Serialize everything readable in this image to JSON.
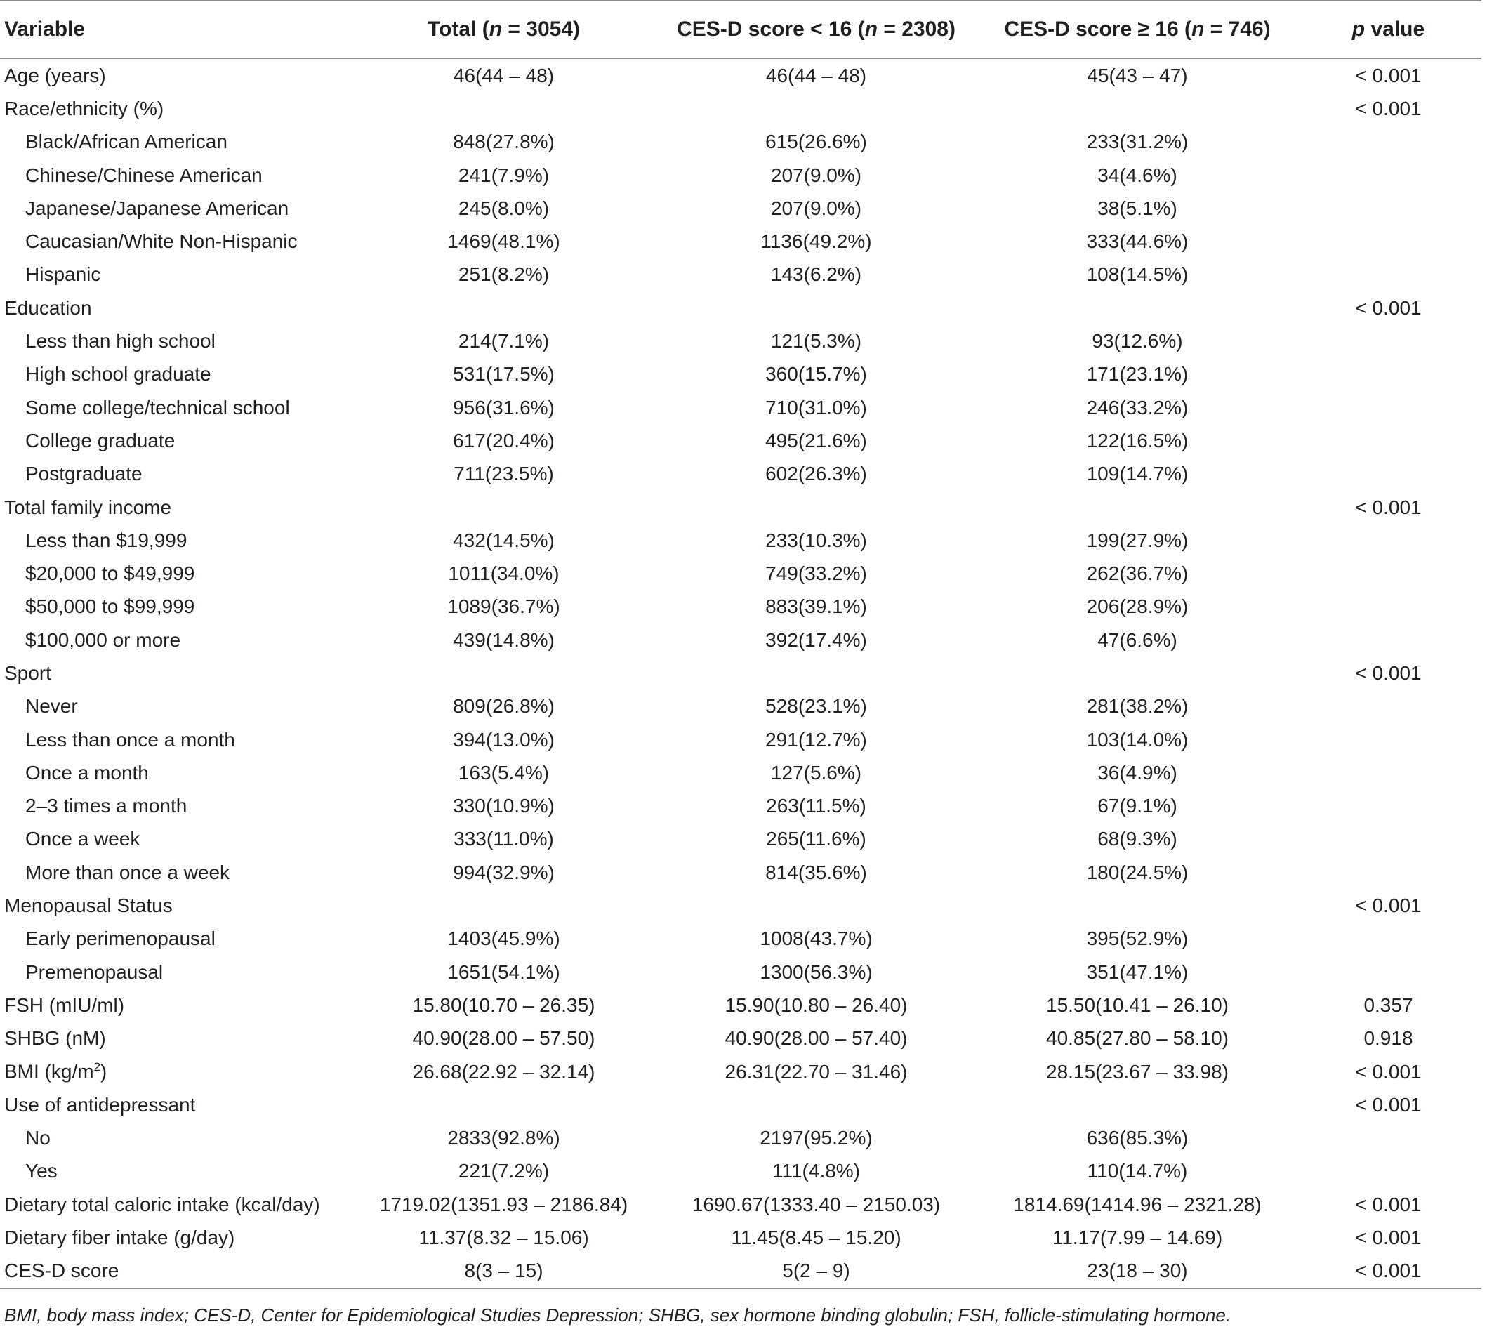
{
  "header": {
    "variable": "Variable",
    "total_prefix": "Total (",
    "total_n": "n",
    "total_suffix": " = 3054)",
    "low_prefix": "CES-D score < 16 (",
    "low_n": "n",
    "low_suffix": " = 2308)",
    "high_prefix": "CES-D score ≥ 16 (",
    "high_n": "n",
    "high_suffix": " = 746)",
    "p_italic": "p",
    "p_suffix": " value"
  },
  "rows": [
    {
      "label": "Age (years)",
      "sub": false,
      "total": "46(44 – 48)",
      "low": "46(44 – 48)",
      "high": "45(43 – 47)",
      "p": "< 0.001"
    },
    {
      "label": "Race/ethnicity (%)",
      "sub": false,
      "total": "",
      "low": "",
      "high": "",
      "p": "< 0.001"
    },
    {
      "label": "Black/African American",
      "sub": true,
      "total": "848(27.8%)",
      "low": "615(26.6%)",
      "high": "233(31.2%)",
      "p": ""
    },
    {
      "label": "Chinese/Chinese American",
      "sub": true,
      "total": "241(7.9%)",
      "low": "207(9.0%)",
      "high": "34(4.6%)",
      "p": ""
    },
    {
      "label": "Japanese/Japanese American",
      "sub": true,
      "total": "245(8.0%)",
      "low": "207(9.0%)",
      "high": "38(5.1%)",
      "p": ""
    },
    {
      "label": "Caucasian/White Non-Hispanic",
      "sub": true,
      "total": "1469(48.1%)",
      "low": "1136(49.2%)",
      "high": "333(44.6%)",
      "p": ""
    },
    {
      "label": "Hispanic",
      "sub": true,
      "total": "251(8.2%)",
      "low": "143(6.2%)",
      "high": "108(14.5%)",
      "p": ""
    },
    {
      "label": "Education",
      "sub": false,
      "total": "",
      "low": "",
      "high": "",
      "p": "< 0.001"
    },
    {
      "label": "Less than high school",
      "sub": true,
      "total": "214(7.1%)",
      "low": "121(5.3%)",
      "high": "93(12.6%)",
      "p": ""
    },
    {
      "label": "High school graduate",
      "sub": true,
      "total": "531(17.5%)",
      "low": "360(15.7%)",
      "high": "171(23.1%)",
      "p": ""
    },
    {
      "label": "Some college/technical school",
      "sub": true,
      "total": "956(31.6%)",
      "low": "710(31.0%)",
      "high": "246(33.2%)",
      "p": ""
    },
    {
      "label": "College graduate",
      "sub": true,
      "total": "617(20.4%)",
      "low": "495(21.6%)",
      "high": "122(16.5%)",
      "p": ""
    },
    {
      "label": "Postgraduate",
      "sub": true,
      "total": "711(23.5%)",
      "low": "602(26.3%)",
      "high": "109(14.7%)",
      "p": ""
    },
    {
      "label": "Total family income",
      "sub": false,
      "total": "",
      "low": "",
      "high": "",
      "p": "< 0.001"
    },
    {
      "label": "Less than $19,999",
      "sub": true,
      "total": "432(14.5%)",
      "low": "233(10.3%)",
      "high": "199(27.9%)",
      "p": ""
    },
    {
      "label": "$20,000 to $49,999",
      "sub": true,
      "total": "1011(34.0%)",
      "low": "749(33.2%)",
      "high": "262(36.7%)",
      "p": ""
    },
    {
      "label": "$50,000 to $99,999",
      "sub": true,
      "total": "1089(36.7%)",
      "low": "883(39.1%)",
      "high": "206(28.9%)",
      "p": ""
    },
    {
      "label": "$100,000 or more",
      "sub": true,
      "total": "439(14.8%)",
      "low": "392(17.4%)",
      "high": "47(6.6%)",
      "p": ""
    },
    {
      "label": "Sport",
      "sub": false,
      "total": "",
      "low": "",
      "high": "",
      "p": "< 0.001"
    },
    {
      "label": "Never",
      "sub": true,
      "total": "809(26.8%)",
      "low": "528(23.1%)",
      "high": "281(38.2%)",
      "p": ""
    },
    {
      "label": "Less than once a month",
      "sub": true,
      "total": "394(13.0%)",
      "low": "291(12.7%)",
      "high": "103(14.0%)",
      "p": ""
    },
    {
      "label": "Once a month",
      "sub": true,
      "total": "163(5.4%)",
      "low": "127(5.6%)",
      "high": "36(4.9%)",
      "p": ""
    },
    {
      "label": "2–3 times a month",
      "sub": true,
      "total": "330(10.9%)",
      "low": "263(11.5%)",
      "high": "67(9.1%)",
      "p": ""
    },
    {
      "label": "Once a week",
      "sub": true,
      "total": "333(11.0%)",
      "low": "265(11.6%)",
      "high": "68(9.3%)",
      "p": ""
    },
    {
      "label": "More than once a week",
      "sub": true,
      "total": "994(32.9%)",
      "low": "814(35.6%)",
      "high": "180(24.5%)",
      "p": ""
    },
    {
      "label": "Menopausal Status",
      "sub": false,
      "total": "",
      "low": "",
      "high": "",
      "p": "< 0.001"
    },
    {
      "label": "Early perimenopausal",
      "sub": true,
      "total": "1403(45.9%)",
      "low": "1008(43.7%)",
      "high": "395(52.9%)",
      "p": ""
    },
    {
      "label": "Premenopausal",
      "sub": true,
      "total": "1651(54.1%)",
      "low": "1300(56.3%)",
      "high": "351(47.1%)",
      "p": ""
    },
    {
      "label": "FSH (mIU/ml)",
      "sub": false,
      "total": "15.80(10.70 – 26.35)",
      "low": "15.90(10.80 – 26.40)",
      "high": "15.50(10.41 – 26.10)",
      "p": "0.357"
    },
    {
      "label": "SHBG (nM)",
      "sub": false,
      "total": "40.90(28.00 – 57.50)",
      "low": "40.90(28.00 – 57.40)",
      "high": "40.85(27.80 – 58.10)",
      "p": "0.918"
    },
    {
      "label": "BMI (kg/m",
      "sup": "2",
      "label_after": ")",
      "sub": false,
      "total": "26.68(22.92 – 32.14)",
      "low": "26.31(22.70 – 31.46)",
      "high": "28.15(23.67 – 33.98)",
      "p": "< 0.001"
    },
    {
      "label": "Use of antidepressant",
      "sub": false,
      "total": "",
      "low": "",
      "high": "",
      "p": "< 0.001"
    },
    {
      "label": "No",
      "sub": true,
      "total": "2833(92.8%)",
      "low": "2197(95.2%)",
      "high": "636(85.3%)",
      "p": ""
    },
    {
      "label": "Yes",
      "sub": true,
      "total": "221(7.2%)",
      "low": "111(4.8%)",
      "high": "110(14.7%)",
      "p": ""
    },
    {
      "label": "Dietary total caloric intake (kcal/day)",
      "sub": false,
      "total": "1719.02(1351.93 – 2186.84)",
      "low": "1690.67(1333.40 – 2150.03)",
      "high": "1814.69(1414.96 – 2321.28)",
      "p": "< 0.001"
    },
    {
      "label": "Dietary fiber intake (g/day)",
      "sub": false,
      "total": "11.37(8.32 – 15.06)",
      "low": "11.45(8.45 – 15.20)",
      "high": "11.17(7.99 – 14.69)",
      "p": "< 0.001"
    },
    {
      "label": "CES-D score",
      "sub": false,
      "total": "8(3 – 15)",
      "low": "5(2 – 9)",
      "high": "23(18 – 30)",
      "p": "< 0.001"
    }
  ],
  "footnote": "BMI, body mass index; CES-D, Center for Epidemiological Studies Depression; SHBG, sex hormone binding globulin; FSH, follicle-stimulating hormone."
}
